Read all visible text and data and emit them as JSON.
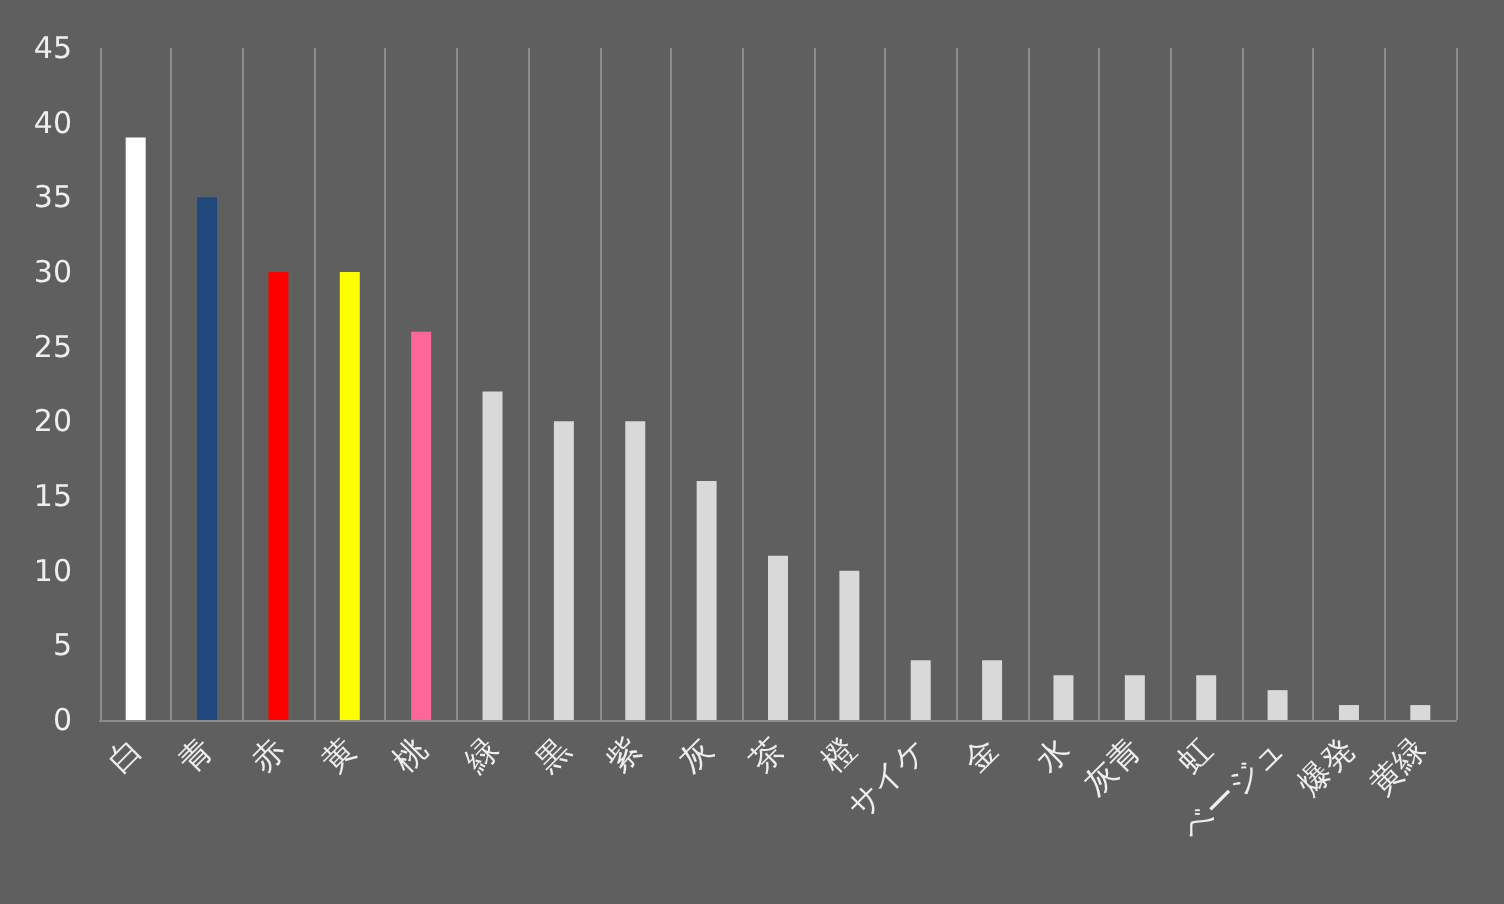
{
  "chart_data": {
    "type": "bar",
    "categories": [
      "白",
      "青",
      "赤",
      "黄",
      "桃",
      "緑",
      "黒",
      "紫",
      "灰",
      "茶",
      "橙",
      "サイケ",
      "金",
      "水",
      "灰青",
      "虹",
      "ベージュ",
      "爆発",
      "黄緑"
    ],
    "values": [
      39,
      35,
      30,
      30,
      26,
      22,
      20,
      20,
      16,
      11,
      10,
      4,
      4,
      3,
      3,
      3,
      2,
      1,
      1
    ],
    "colors": [
      "#ffffff",
      "#1f497d",
      "#ff0000",
      "#ffff00",
      "#ff6699",
      "#d9d9d9",
      "#d9d9d9",
      "#d9d9d9",
      "#d9d9d9",
      "#d9d9d9",
      "#d9d9d9",
      "#d9d9d9",
      "#d9d9d9",
      "#d9d9d9",
      "#d9d9d9",
      "#d9d9d9",
      "#d9d9d9",
      "#d9d9d9",
      "#d9d9d9"
    ],
    "ylim": [
      0,
      45
    ],
    "yticks": [
      0,
      5,
      10,
      15,
      20,
      25,
      30,
      35,
      40,
      45
    ],
    "grid": "x"
  }
}
